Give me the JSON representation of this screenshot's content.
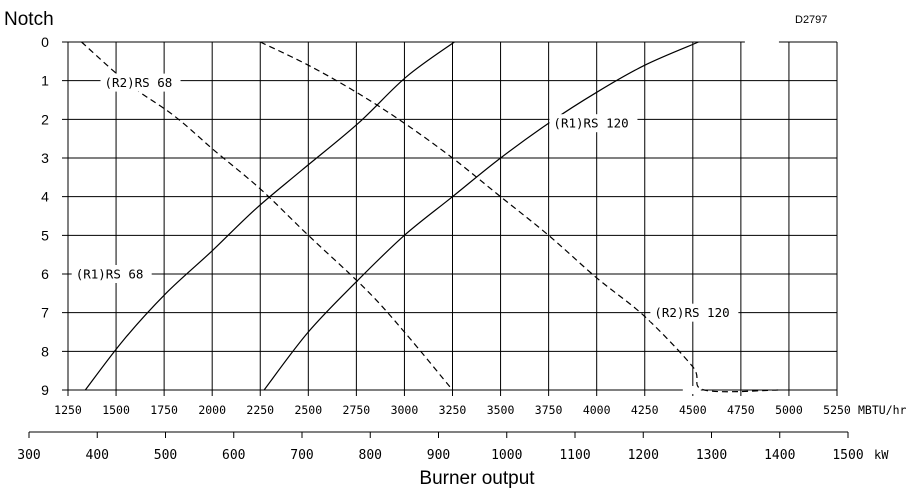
{
  "chart_data": {
    "type": "line",
    "code": "D2797",
    "ylabel": "Notch",
    "xlabel": "Burner output",
    "y_ticks": [
      "0",
      "1",
      "2",
      "3",
      "4",
      "5",
      "6",
      "7",
      "8",
      "9"
    ],
    "y_range": [
      0,
      9
    ],
    "x_unit": "MBTU/hr",
    "x_ticks": [
      "1250",
      "1500",
      "1750",
      "2000",
      "2250",
      "2500",
      "2750",
      "3000",
      "3250",
      "3500",
      "3750",
      "4000",
      "4250",
      "4500",
      "4750",
      "5000",
      "5250"
    ],
    "x_range": [
      1250,
      5250
    ],
    "x2_unit": "kW",
    "x2_ticks": [
      "300",
      "400",
      "500",
      "600",
      "700",
      "800",
      "900",
      "1000",
      "1100",
      "1200",
      "1300",
      "1400",
      "1500"
    ],
    "x2_range": [
      300,
      1500
    ],
    "grid": true,
    "series": [
      {
        "name": "(R1)RS 68",
        "style": "solid",
        "x": [
          1340,
          1540,
          1760,
          2000,
          2230,
          2470,
          2760,
          3010,
          3260
        ],
        "y": [
          9,
          7.7,
          6.5,
          5.4,
          4.3,
          3.3,
          2.1,
          0.9,
          0
        ]
      },
      {
        "name": "(R2)RS 68",
        "style": "dashed",
        "x": [
          1320,
          1570,
          1800,
          2010,
          2250,
          2500,
          2800,
          3000,
          3250
        ],
        "y": [
          0,
          1.1,
          1.9,
          2.8,
          3.8,
          5.0,
          6.4,
          7.5,
          9
        ]
      },
      {
        "name": "(R1)RS 120",
        "style": "solid",
        "x": [
          2270,
          2500,
          2750,
          3000,
          3250,
          3500,
          3750,
          4000,
          4250,
          4530
        ],
        "y": [
          9,
          7.5,
          6.2,
          5.0,
          4.0,
          3.0,
          2.1,
          1.3,
          0.6,
          0
        ]
      },
      {
        "name": "(R2)RS 120",
        "style": "dashed",
        "x": [
          2250,
          2500,
          2750,
          3000,
          3250,
          3500,
          3750,
          4000,
          4250,
          4500,
          4560,
          4950
        ],
        "y": [
          0,
          0.6,
          1.3,
          2.1,
          3.0,
          4.0,
          5.0,
          6.1,
          7.1,
          8.4,
          9,
          9
        ]
      }
    ]
  }
}
